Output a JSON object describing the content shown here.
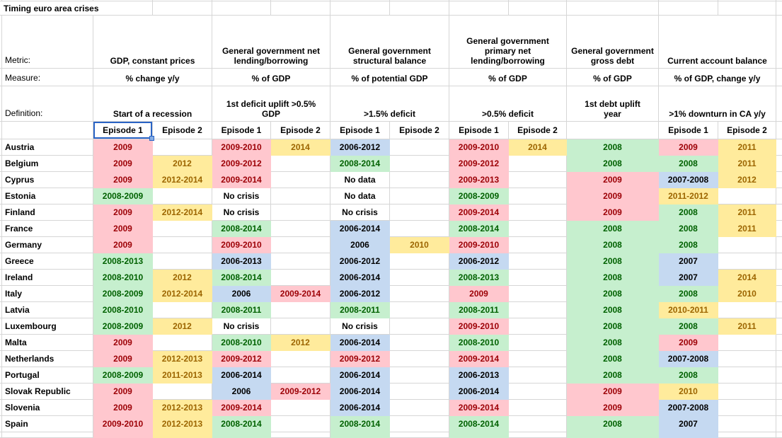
{
  "title": "Timing euro area crises",
  "row_labels": {
    "metric": "Metric:",
    "measure": "Measure:",
    "definition": "Definition:"
  },
  "groups": [
    {
      "metric": "GDP, constant prices",
      "measure": "% change y/y",
      "definition": "Start of a recession",
      "episodes": [
        "Episode 1",
        "Episode 2"
      ]
    },
    {
      "metric": "General government net lending/borrowing",
      "measure": "% of GDP",
      "definition": "1st deficit uplift >0.5%\nGDP",
      "episodes": [
        "Episode 1",
        "Episode 2"
      ]
    },
    {
      "metric": "General government structural balance",
      "measure": "% of potential GDP",
      "definition": ">1.5% deficit",
      "episodes": [
        "Episode 1",
        "Episode 2"
      ]
    },
    {
      "metric": "General government primary net lending/borrowing",
      "measure": "% of GDP",
      "definition": ">0.5% deficit",
      "episodes": [
        "Episode 1",
        "Episode 2"
      ]
    },
    {
      "metric": "General government gross debt",
      "measure": "% of GDP",
      "definition": "1st debt uplift\nyear",
      "episodes": [
        ""
      ]
    },
    {
      "metric": "Current account balance",
      "measure": "% of GDP, change y/y",
      "definition": ">1% downturn in CA y/y",
      "episodes": [
        "Episode 1",
        "Episode 2"
      ]
    }
  ],
  "selection": {
    "cell": "Episode 1",
    "group": "GDP, constant prices",
    "border_color": "#2a64c5",
    "handle_color": "#86ade4"
  },
  "colors": {
    "grid": "#d6d6d6",
    "pink": {
      "bg": "#ffc7ce",
      "fg": "#9c0006"
    },
    "yellow": {
      "bg": "#ffeb9c",
      "fg": "#9c6500"
    },
    "green": {
      "bg": "#c6efce",
      "fg": "#006100"
    },
    "blue": {
      "bg": "#c5d9f1",
      "fg": "#000000"
    }
  },
  "rows": [
    {
      "country": "Austria",
      "cells": [
        [
          "2009",
          "pink"
        ],
        [
          "",
          ""
        ],
        [
          "2009-2010",
          "pink"
        ],
        [
          "2014",
          "yellow"
        ],
        [
          "2006-2012",
          "blue"
        ],
        [
          "",
          ""
        ],
        [
          "2009-2010",
          "pink"
        ],
        [
          "2014",
          "yellow"
        ],
        [
          "2008",
          "green"
        ],
        [
          "2009",
          "pink"
        ],
        [
          "2011",
          "yellow"
        ]
      ]
    },
    {
      "country": "Belgium",
      "cells": [
        [
          "2009",
          "pink"
        ],
        [
          "2012",
          "yellow"
        ],
        [
          "2009-2012",
          "pink"
        ],
        [
          "",
          ""
        ],
        [
          "2008-2014",
          "green"
        ],
        [
          "",
          ""
        ],
        [
          "2009-2012",
          "pink"
        ],
        [
          "",
          ""
        ],
        [
          "2008",
          "green"
        ],
        [
          "2008",
          "green"
        ],
        [
          "2011",
          "yellow"
        ]
      ]
    },
    {
      "country": "Cyprus",
      "cells": [
        [
          "2009",
          "pink"
        ],
        [
          "2012-2014",
          "yellow"
        ],
        [
          "2009-2014",
          "pink"
        ],
        [
          "",
          ""
        ],
        [
          "No data",
          ""
        ],
        [
          "",
          ""
        ],
        [
          "2009-2013",
          "pink"
        ],
        [
          "",
          ""
        ],
        [
          "2009",
          "pink"
        ],
        [
          "2007-2008",
          "blue"
        ],
        [
          "2012",
          "yellow"
        ]
      ]
    },
    {
      "country": "Estonia",
      "cells": [
        [
          "2008-2009",
          "green"
        ],
        [
          "",
          ""
        ],
        [
          "No crisis",
          ""
        ],
        [
          "",
          ""
        ],
        [
          "No data",
          ""
        ],
        [
          "",
          ""
        ],
        [
          "2008-2009",
          "green"
        ],
        [
          "",
          ""
        ],
        [
          "2009",
          "pink"
        ],
        [
          "2011-2012",
          "yellow"
        ],
        [
          "",
          ""
        ]
      ]
    },
    {
      "country": "Finland",
      "cells": [
        [
          "2009",
          "pink"
        ],
        [
          "2012-2014",
          "yellow"
        ],
        [
          "No crisis",
          ""
        ],
        [
          "",
          ""
        ],
        [
          "No crisis",
          ""
        ],
        [
          "",
          ""
        ],
        [
          "2009-2014",
          "pink"
        ],
        [
          "",
          ""
        ],
        [
          "2009",
          "pink"
        ],
        [
          "2008",
          "green"
        ],
        [
          "2011",
          "yellow"
        ]
      ]
    },
    {
      "country": "France",
      "cells": [
        [
          "2009",
          "pink"
        ],
        [
          "",
          ""
        ],
        [
          "2008-2014",
          "green"
        ],
        [
          "",
          ""
        ],
        [
          "2006-2014",
          "blue"
        ],
        [
          "",
          ""
        ],
        [
          "2008-2014",
          "green"
        ],
        [
          "",
          ""
        ],
        [
          "2008",
          "green"
        ],
        [
          "2008",
          "green"
        ],
        [
          "2011",
          "yellow"
        ]
      ]
    },
    {
      "country": "Germany",
      "cells": [
        [
          "2009",
          "pink"
        ],
        [
          "",
          ""
        ],
        [
          "2009-2010",
          "pink"
        ],
        [
          "",
          ""
        ],
        [
          "2006",
          "blue"
        ],
        [
          "2010",
          "yellow"
        ],
        [
          "2009-2010",
          "pink"
        ],
        [
          "",
          ""
        ],
        [
          "2008",
          "green"
        ],
        [
          "2008",
          "green"
        ],
        [
          "",
          ""
        ]
      ]
    },
    {
      "country": "Greece",
      "cells": [
        [
          "2008-2013",
          "green"
        ],
        [
          "",
          ""
        ],
        [
          "2006-2013",
          "blue"
        ],
        [
          "",
          ""
        ],
        [
          "2006-2012",
          "blue"
        ],
        [
          "",
          ""
        ],
        [
          "2006-2012",
          "blue"
        ],
        [
          "",
          ""
        ],
        [
          "2008",
          "green"
        ],
        [
          "2007",
          "blue"
        ],
        [
          "",
          ""
        ]
      ]
    },
    {
      "country": "Ireland",
      "cells": [
        [
          "2008-2010",
          "green"
        ],
        [
          "2012",
          "yellow"
        ],
        [
          "2008-2014",
          "green"
        ],
        [
          "",
          ""
        ],
        [
          "2006-2014",
          "blue"
        ],
        [
          "",
          ""
        ],
        [
          "2008-2013",
          "green"
        ],
        [
          "",
          ""
        ],
        [
          "2008",
          "green"
        ],
        [
          "2007",
          "blue"
        ],
        [
          "2014",
          "yellow"
        ]
      ]
    },
    {
      "country": "Italy",
      "cells": [
        [
          "2008-2009",
          "green"
        ],
        [
          "2012-2014",
          "yellow"
        ],
        [
          "2006",
          "blue"
        ],
        [
          "2009-2014",
          "pink"
        ],
        [
          "2006-2012",
          "blue"
        ],
        [
          "",
          ""
        ],
        [
          "2009",
          "pink"
        ],
        [
          "",
          ""
        ],
        [
          "2008",
          "green"
        ],
        [
          "2008",
          "green"
        ],
        [
          "2010",
          "yellow"
        ]
      ]
    },
    {
      "country": "Latvia",
      "cells": [
        [
          "2008-2010",
          "green"
        ],
        [
          "",
          ""
        ],
        [
          "2008-2011",
          "green"
        ],
        [
          "",
          ""
        ],
        [
          "2008-2011",
          "green"
        ],
        [
          "",
          ""
        ],
        [
          "2008-2011",
          "green"
        ],
        [
          "",
          ""
        ],
        [
          "2008",
          "green"
        ],
        [
          "2010-2011",
          "yellow"
        ],
        [
          "",
          ""
        ]
      ]
    },
    {
      "country": "Luxembourg",
      "cells": [
        [
          "2008-2009",
          "green"
        ],
        [
          "2012",
          "yellow"
        ],
        [
          "No crisis",
          ""
        ],
        [
          "",
          ""
        ],
        [
          "No crisis",
          ""
        ],
        [
          "",
          ""
        ],
        [
          "2009-2010",
          "pink"
        ],
        [
          "",
          ""
        ],
        [
          "2008",
          "green"
        ],
        [
          "2008",
          "green"
        ],
        [
          "2011",
          "yellow"
        ]
      ]
    },
    {
      "country": "Malta",
      "cells": [
        [
          "2009",
          "pink"
        ],
        [
          "",
          ""
        ],
        [
          "2008-2010",
          "green"
        ],
        [
          "2012",
          "yellow"
        ],
        [
          "2006-2014",
          "blue"
        ],
        [
          "",
          ""
        ],
        [
          "2008-2010",
          "green"
        ],
        [
          "",
          ""
        ],
        [
          "2008",
          "green"
        ],
        [
          "2009",
          "pink"
        ],
        [
          "",
          ""
        ]
      ]
    },
    {
      "country": "Netherlands",
      "cells": [
        [
          "2009",
          "pink"
        ],
        [
          "2012-2013",
          "yellow"
        ],
        [
          "2009-2012",
          "pink"
        ],
        [
          "",
          ""
        ],
        [
          "2009-2012",
          "pink"
        ],
        [
          "",
          ""
        ],
        [
          "2009-2014",
          "pink"
        ],
        [
          "",
          ""
        ],
        [
          "2008",
          "green"
        ],
        [
          "2007-2008",
          "blue"
        ],
        [
          "",
          ""
        ]
      ]
    },
    {
      "country": "Portugal",
      "cells": [
        [
          "2008-2009",
          "green"
        ],
        [
          "2011-2013",
          "yellow"
        ],
        [
          "2006-2014",
          "blue"
        ],
        [
          "",
          ""
        ],
        [
          "2006-2014",
          "blue"
        ],
        [
          "",
          ""
        ],
        [
          "2006-2013",
          "blue"
        ],
        [
          "",
          ""
        ],
        [
          "2008",
          "green"
        ],
        [
          "2008",
          "green"
        ],
        [
          "",
          ""
        ]
      ]
    },
    {
      "country": "Slovak Republic",
      "cells": [
        [
          "2009",
          "pink"
        ],
        [
          "",
          ""
        ],
        [
          "2006",
          "blue"
        ],
        [
          "2009-2012",
          "pink"
        ],
        [
          "2006-2014",
          "blue"
        ],
        [
          "",
          ""
        ],
        [
          "2006-2014",
          "blue"
        ],
        [
          "",
          ""
        ],
        [
          "2009",
          "pink"
        ],
        [
          "2010",
          "yellow"
        ],
        [
          "",
          ""
        ]
      ]
    },
    {
      "country": "Slovenia",
      "cells": [
        [
          "2009",
          "pink"
        ],
        [
          "2012-2013",
          "yellow"
        ],
        [
          "2009-2014",
          "pink"
        ],
        [
          "",
          ""
        ],
        [
          "2006-2014",
          "blue"
        ],
        [
          "",
          ""
        ],
        [
          "2009-2014",
          "pink"
        ],
        [
          "",
          ""
        ],
        [
          "2009",
          "pink"
        ],
        [
          "2007-2008",
          "blue"
        ],
        [
          "",
          ""
        ]
      ]
    },
    {
      "country": "Spain",
      "cells": [
        [
          "2009-2010",
          "pink"
        ],
        [
          "2012-2013",
          "yellow"
        ],
        [
          "2008-2014",
          "green"
        ],
        [
          "",
          ""
        ],
        [
          "2008-2014",
          "green"
        ],
        [
          "",
          ""
        ],
        [
          "2008-2014",
          "green"
        ],
        [
          "",
          ""
        ],
        [
          "2008",
          "green"
        ],
        [
          "2007",
          "blue"
        ],
        [
          "",
          ""
        ]
      ]
    }
  ],
  "partial_row_colors": [
    "pink",
    "yellow",
    "green",
    "",
    "green",
    "",
    "green",
    "",
    "green",
    "blue",
    ""
  ]
}
